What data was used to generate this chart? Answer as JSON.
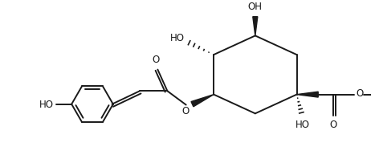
{
  "bg_color": "#ffffff",
  "line_color": "#1a1a1a",
  "line_width": 1.4,
  "font_size": 8.5,
  "fig_width": 4.72,
  "fig_height": 1.98,
  "dpi": 100,
  "xlim": [
    0,
    10.5
  ],
  "ylim": [
    0,
    4.4
  ]
}
